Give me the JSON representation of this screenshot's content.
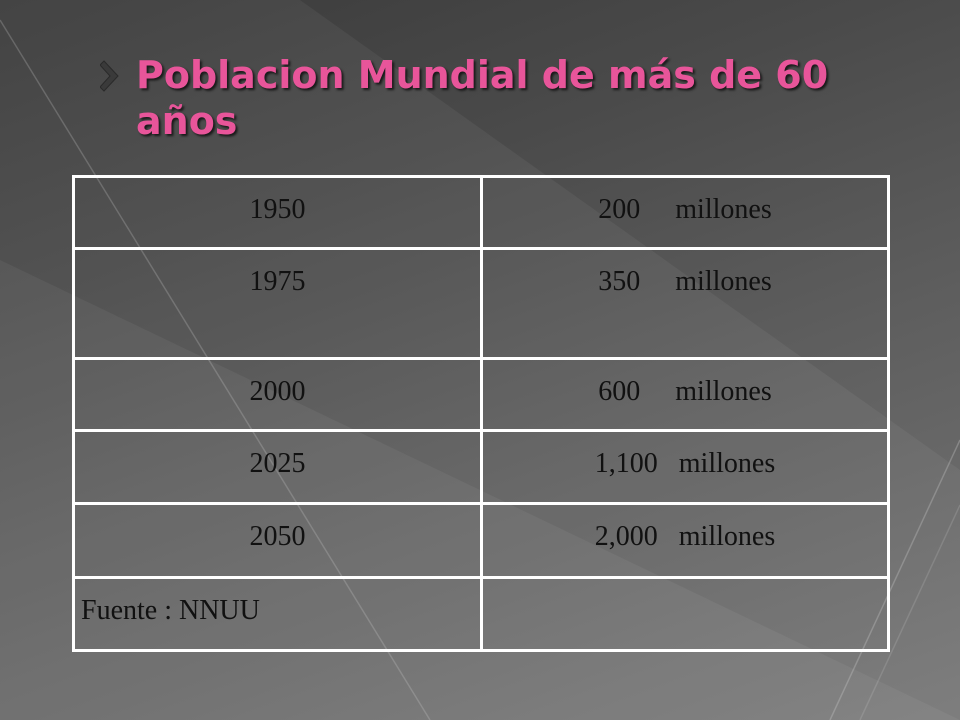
{
  "slide": {
    "title": "Poblacion Mundial de más de 60 años",
    "accent_color": "#e8559a",
    "background_colors": [
      "#3a3a3a",
      "#777777"
    ]
  },
  "table": {
    "rows": [
      {
        "year": "1950",
        "value": "200     millones"
      },
      {
        "year": "1975",
        "value": "350     millones"
      },
      {
        "year": "2000",
        "value": "600     millones"
      },
      {
        "year": "2025",
        "value": "1,100   millones"
      },
      {
        "year": "2050",
        "value": "2,000   millones"
      }
    ],
    "source": "Fuente : NNUU"
  }
}
